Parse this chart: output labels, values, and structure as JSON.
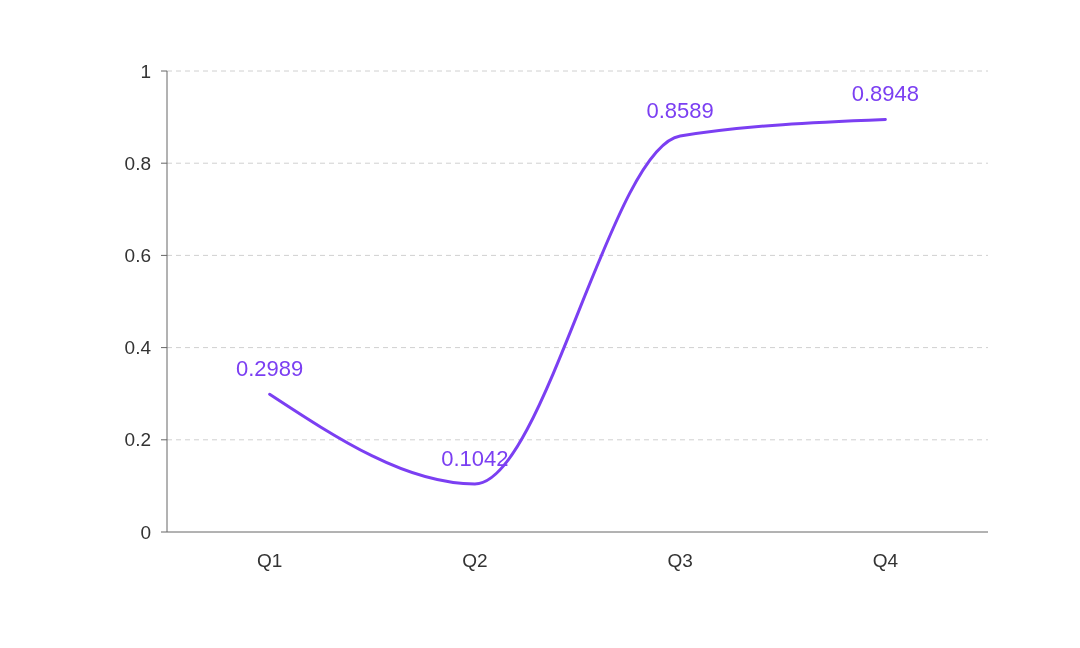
{
  "chart_data": {
    "type": "line",
    "categories": [
      "Q1",
      "Q2",
      "Q3",
      "Q4"
    ],
    "series": [
      {
        "color": "#7b3ff2",
        "values": [
          0.2989,
          0.1042,
          0.8589,
          0.8948
        ]
      }
    ],
    "ylim": [
      0,
      1
    ],
    "yticks": [
      0,
      0.2,
      0.4,
      0.6,
      0.8,
      1
    ],
    "grid": "y",
    "data_labels": true,
    "marker": "none",
    "line_style": "solid"
  }
}
